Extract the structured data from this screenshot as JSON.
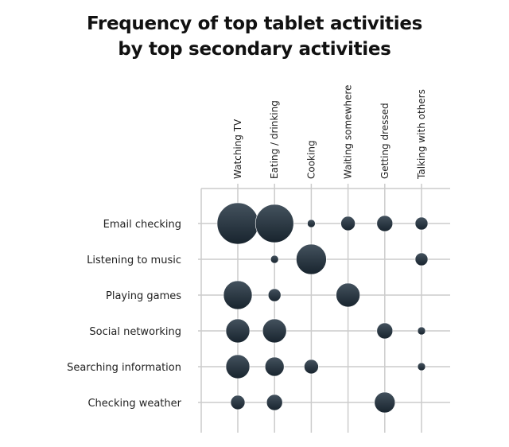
{
  "title": {
    "line1": "Frequency of top tablet activities",
    "line2": "by top secondary activities"
  },
  "colors": {
    "bubble_top": "#44525e",
    "bubble_bottom": "#18242e",
    "grid": "#cccccc",
    "text": "#222222"
  },
  "chart_data": {
    "type": "bubble-matrix",
    "title": "Frequency of top tablet activities by top secondary activities",
    "xlabel": "",
    "ylabel": "",
    "columns": [
      "Watching TV",
      "Eating / drinking",
      "Cooking",
      "Waiting somewhere",
      "Getting dressed",
      "Talking with others"
    ],
    "rows": [
      "Email checking",
      "Listening to music",
      "Playing games",
      "Social networking",
      "Searching information",
      "Checking weather"
    ],
    "grid": true,
    "legend": "none",
    "size_unit": "relative bubble radius (px)",
    "values": [
      [
        26,
        24,
        5,
        9,
        10,
        8
      ],
      [
        0,
        5,
        19,
        0,
        0,
        8
      ],
      [
        18,
        8,
        0,
        15,
        0,
        0
      ],
      [
        15,
        15,
        0,
        0,
        10,
        5
      ],
      [
        15,
        12,
        9,
        0,
        0,
        5
      ],
      [
        9,
        10,
        0,
        0,
        13,
        0
      ]
    ]
  }
}
